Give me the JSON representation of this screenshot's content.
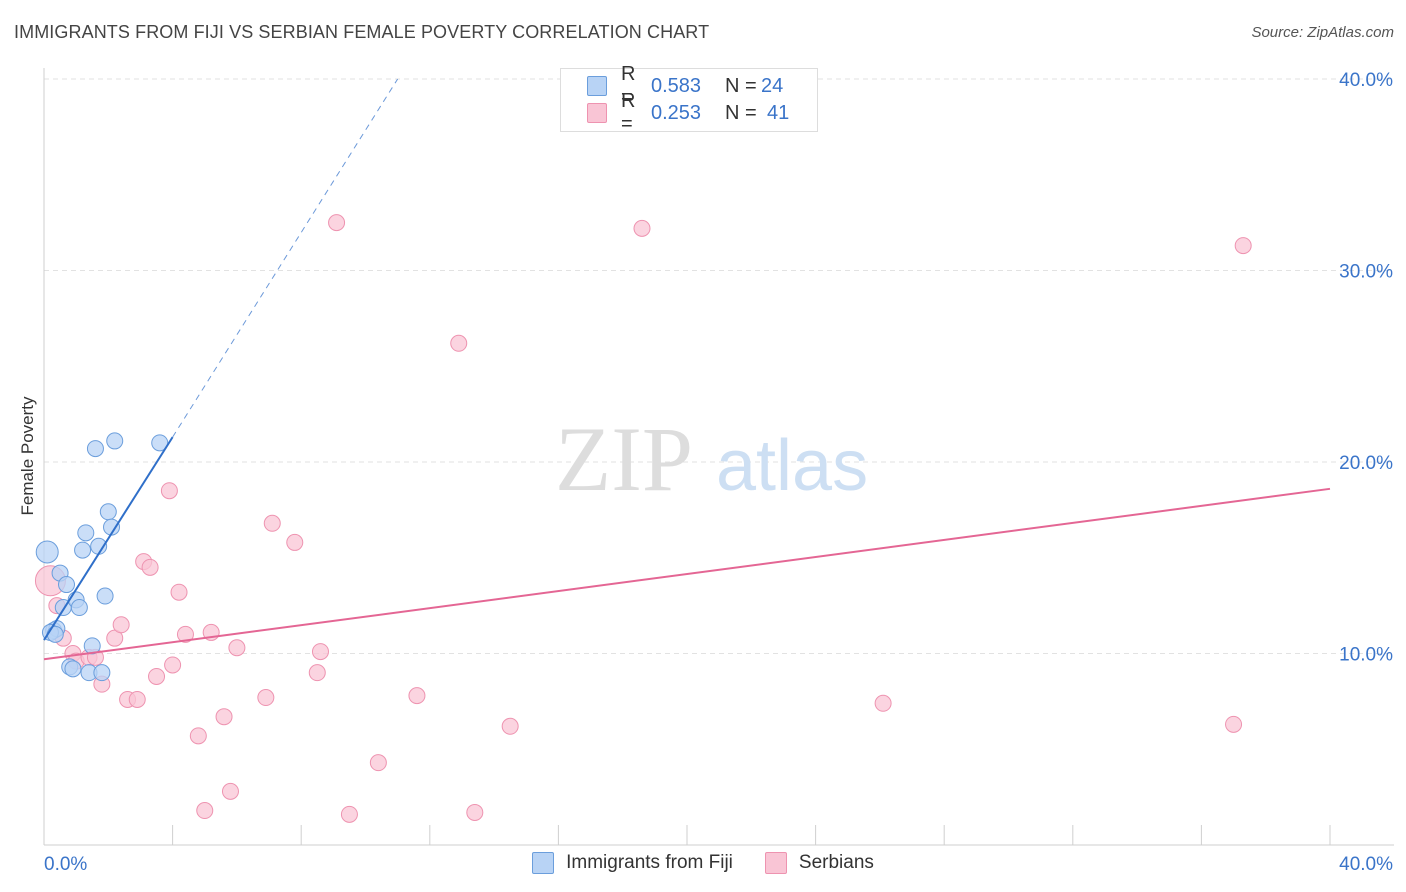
{
  "header": {
    "title": "IMMIGRANTS FROM FIJI VS SERBIAN FEMALE POVERTY CORRELATION CHART",
    "source": "Source: ZipAtlas.com"
  },
  "watermark": {
    "zip": "ZIP",
    "atlas": "atlas"
  },
  "legend": {
    "r_label": "R =",
    "n_label": "N =",
    "rows": [
      {
        "r": "0.583",
        "n": "24"
      },
      {
        "r": "0.253",
        "n": "41"
      }
    ]
  },
  "colors": {
    "fiji_fill": "#b8d3f5",
    "fiji_stroke": "#6b9edc",
    "fiji_line": "#2f6fc9",
    "serb_fill": "#f9c5d5",
    "serb_stroke": "#ee93b0",
    "serb_line": "#e46694",
    "tick_text": "#3a74c9",
    "grid": "#e2e2e2"
  },
  "chart_data": {
    "type": "scatter",
    "title": "IMMIGRANTS FROM FIJI VS SERBIAN FEMALE POVERTY CORRELATION CHART",
    "xlabel": "",
    "ylabel": "Female Poverty",
    "xlim": [
      0,
      40
    ],
    "ylim": [
      0,
      40
    ],
    "x_tick_labels": [
      "0.0%",
      "40.0%"
    ],
    "y_ticks": [
      10,
      20,
      30,
      40
    ],
    "y_tick_labels": [
      "10.0%",
      "20.0%",
      "30.0%",
      "40.0%"
    ],
    "series": [
      {
        "name": "Immigrants from Fiji",
        "R": 0.583,
        "N": 24,
        "points": [
          [
            0.1,
            15.3
          ],
          [
            0.3,
            11.2
          ],
          [
            0.4,
            11.3
          ],
          [
            0.5,
            14.2
          ],
          [
            0.6,
            12.4
          ],
          [
            0.7,
            13.6
          ],
          [
            0.8,
            9.3
          ],
          [
            0.9,
            9.2
          ],
          [
            1.0,
            12.8
          ],
          [
            1.1,
            12.4
          ],
          [
            1.2,
            15.4
          ],
          [
            1.3,
            16.3
          ],
          [
            1.4,
            9.0
          ],
          [
            1.5,
            10.4
          ],
          [
            1.6,
            20.7
          ],
          [
            1.7,
            15.6
          ],
          [
            1.8,
            9.0
          ],
          [
            1.9,
            13.0
          ],
          [
            2.0,
            17.4
          ],
          [
            2.1,
            16.6
          ],
          [
            2.2,
            21.1
          ],
          [
            3.6,
            21.0
          ],
          [
            0.2,
            11.1
          ],
          [
            0.35,
            11.0
          ]
        ],
        "trend": {
          "x0": 0.0,
          "y0": 10.7,
          "x1": 4.0,
          "y1": 21.3,
          "dashed_to_x": 11.0,
          "dashed_to_y": 40.0
        }
      },
      {
        "name": "Serbians",
        "R": 0.253,
        "N": 41,
        "points": [
          [
            0.2,
            13.8
          ],
          [
            0.4,
            12.5
          ],
          [
            0.6,
            10.8
          ],
          [
            0.9,
            10.0
          ],
          [
            1.0,
            9.6
          ],
          [
            1.4,
            9.8
          ],
          [
            1.6,
            9.8
          ],
          [
            1.8,
            8.4
          ],
          [
            2.2,
            10.8
          ],
          [
            2.4,
            11.5
          ],
          [
            2.6,
            7.6
          ],
          [
            2.9,
            7.6
          ],
          [
            3.1,
            14.8
          ],
          [
            3.3,
            14.5
          ],
          [
            3.5,
            8.8
          ],
          [
            3.9,
            18.5
          ],
          [
            4.0,
            9.4
          ],
          [
            4.2,
            13.2
          ],
          [
            4.4,
            11.0
          ],
          [
            4.8,
            5.7
          ],
          [
            5.0,
            1.8
          ],
          [
            5.2,
            11.1
          ],
          [
            5.6,
            6.7
          ],
          [
            5.8,
            2.8
          ],
          [
            6.0,
            10.3
          ],
          [
            6.9,
            7.7
          ],
          [
            7.1,
            16.8
          ],
          [
            7.8,
            15.8
          ],
          [
            8.5,
            9.0
          ],
          [
            8.6,
            10.1
          ],
          [
            9.1,
            32.5
          ],
          [
            9.5,
            1.6
          ],
          [
            10.4,
            4.3
          ],
          [
            11.6,
            7.8
          ],
          [
            12.9,
            26.2
          ],
          [
            13.4,
            1.7
          ],
          [
            14.5,
            6.2
          ],
          [
            18.6,
            32.2
          ],
          [
            26.1,
            7.4
          ],
          [
            37.0,
            6.3
          ],
          [
            37.3,
            31.3
          ]
        ],
        "trend": {
          "x0": 0.0,
          "y0": 9.7,
          "x1": 40.0,
          "y1": 18.6
        }
      }
    ]
  },
  "bottom_legend": [
    {
      "label": "Immigrants from Fiji"
    },
    {
      "label": "Serbians"
    }
  ]
}
